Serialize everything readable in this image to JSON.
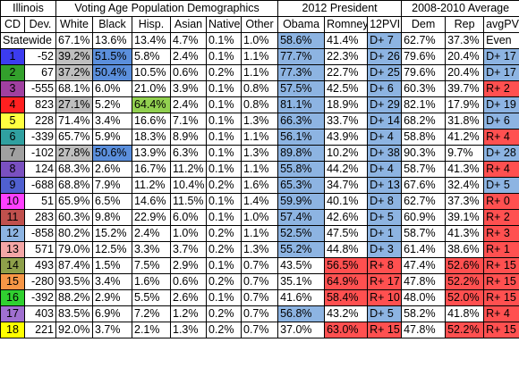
{
  "table": {
    "header": {
      "groups": [
        "Illinois",
        "Voting Age Population Demographics",
        "2012 President",
        "2008-2010 Average"
      ],
      "columns": [
        "CD",
        "Dev.",
        "White",
        "Black",
        "Hisp.",
        "Asian",
        "Native",
        "Other",
        "Obama",
        "Romney",
        "12PVI",
        "Dem",
        "Rep",
        "avgPVI"
      ]
    },
    "rows": [
      {
        "cells": [
          "Statewide",
          "67.1%",
          "13.6%",
          "13.4%",
          "4.7%",
          "0.1%",
          "1.0%",
          "58.6%",
          "41.4%",
          "D+ 7",
          "62.7%",
          "37.3%",
          "Even"
        ]
      },
      {
        "cd_color": "#3c3cf0",
        "cells": [
          "1",
          "-52",
          "39.2%",
          "51.5%",
          "5.8%",
          "2.4%",
          "0.1%",
          "1.1%",
          "77.7%",
          "22.3%",
          "D+ 26",
          "79.6%",
          "20.4%",
          "D+ 17"
        ]
      },
      {
        "cd_color": "#33a02c",
        "cells": [
          "2",
          "67",
          "37.2%",
          "50.4%",
          "10.5%",
          "0.6%",
          "0.2%",
          "1.1%",
          "77.3%",
          "22.7%",
          "D+ 25",
          "79.6%",
          "20.4%",
          "D+ 17"
        ]
      },
      {
        "cd_color": "#a040a0",
        "cells": [
          "3",
          "-555",
          "68.1%",
          "6.0%",
          "21.0%",
          "3.9%",
          "0.1%",
          "0.8%",
          "57.5%",
          "42.5%",
          "D+ 6",
          "60.3%",
          "39.7%",
          "R+ 2"
        ]
      },
      {
        "cd_color": "#ff2020",
        "cells": [
          "4",
          "823",
          "27.1%",
          "5.2%",
          "64.4%",
          "2.4%",
          "0.1%",
          "0.8%",
          "81.1%",
          "18.9%",
          "D+ 29",
          "82.1%",
          "17.9%",
          "D+ 19"
        ]
      },
      {
        "cd_color": "#ffff40",
        "cells": [
          "5",
          "228",
          "71.4%",
          "3.4%",
          "16.6%",
          "7.1%",
          "0.1%",
          "1.3%",
          "66.3%",
          "33.7%",
          "D+ 14",
          "68.2%",
          "31.8%",
          "D+ 6"
        ]
      },
      {
        "cd_color": "#30a0a0",
        "cells": [
          "6",
          "-339",
          "65.7%",
          "5.9%",
          "18.3%",
          "8.9%",
          "0.1%",
          "1.1%",
          "56.1%",
          "43.9%",
          "D+ 4",
          "58.8%",
          "41.2%",
          "R+ 4"
        ]
      },
      {
        "cd_color": "#a0a0a0",
        "cells": [
          "7",
          "-102",
          "27.8%",
          "50.6%",
          "13.9%",
          "6.3%",
          "0.1%",
          "1.3%",
          "89.8%",
          "10.2%",
          "D+ 38",
          "90.3%",
          "9.7%",
          "D+ 28"
        ]
      },
      {
        "cd_color": "#7a50c0",
        "cells": [
          "8",
          "124",
          "68.3%",
          "2.6%",
          "16.7%",
          "11.2%",
          "0.1%",
          "1.1%",
          "55.8%",
          "44.2%",
          "D+ 4",
          "58.7%",
          "41.3%",
          "R+ 4"
        ]
      },
      {
        "cd_color": "#5060d0",
        "cells": [
          "9",
          "-688",
          "68.8%",
          "7.9%",
          "11.2%",
          "10.4%",
          "0.2%",
          "1.6%",
          "65.3%",
          "34.7%",
          "D+ 13",
          "67.6%",
          "32.4%",
          "D+ 5"
        ]
      },
      {
        "cd_color": "#ff40ff",
        "cells": [
          "10",
          "51",
          "65.9%",
          "6.5%",
          "14.6%",
          "11.5%",
          "0.1%",
          "1.4%",
          "59.9%",
          "40.1%",
          "D+ 8",
          "62.7%",
          "37.3%",
          "R+ 0"
        ]
      },
      {
        "cd_color": "#c0504d",
        "cells": [
          "11",
          "283",
          "60.3%",
          "9.8%",
          "22.9%",
          "6.0%",
          "0.1%",
          "1.0%",
          "57.4%",
          "42.6%",
          "D+ 5",
          "60.9%",
          "39.1%",
          "R+ 2"
        ]
      },
      {
        "cd_color": "#8db4e2",
        "cells": [
          "12",
          "-858",
          "80.2%",
          "15.2%",
          "2.4%",
          "1.0%",
          "0.2%",
          "1.1%",
          "52.5%",
          "47.5%",
          "D+ 1",
          "58.7%",
          "41.3%",
          "R+ 3"
        ]
      },
      {
        "cd_color": "#f4a6a6",
        "cells": [
          "13",
          "571",
          "79.0%",
          "12.5%",
          "3.3%",
          "3.7%",
          "0.2%",
          "1.3%",
          "55.2%",
          "44.8%",
          "D+ 3",
          "61.4%",
          "38.6%",
          "R+ 1"
        ]
      },
      {
        "cd_color": "#8ea04a",
        "cells": [
          "14",
          "493",
          "87.4%",
          "1.5%",
          "7.5%",
          "2.9%",
          "0.1%",
          "0.7%",
          "43.5%",
          "56.5%",
          "R+ 8",
          "47.4%",
          "52.6%",
          "R+ 15"
        ]
      },
      {
        "cd_color": "#f79646",
        "cells": [
          "15",
          "-280",
          "93.5%",
          "3.4%",
          "1.6%",
          "0.6%",
          "0.2%",
          "0.7%",
          "35.1%",
          "64.9%",
          "R+ 17",
          "47.8%",
          "52.2%",
          "R+ 15"
        ]
      },
      {
        "cd_color": "#30d030",
        "cells": [
          "16",
          "-392",
          "88.2%",
          "2.9%",
          "5.5%",
          "2.6%",
          "0.1%",
          "0.7%",
          "41.6%",
          "58.4%",
          "R+ 10",
          "48.0%",
          "52.0%",
          "R+ 15"
        ]
      },
      {
        "cd_color": "#a070d0",
        "cells": [
          "17",
          "403",
          "83.5%",
          "6.9%",
          "7.2%",
          "1.2%",
          "0.2%",
          "0.7%",
          "56.8%",
          "43.2%",
          "D+ 5",
          "58.2%",
          "41.8%",
          "R+ 4"
        ]
      },
      {
        "cd_color": "#ffff00",
        "cells": [
          "18",
          "221",
          "92.0%",
          "3.7%",
          "2.1%",
          "1.3%",
          "0.2%",
          "0.7%",
          "37.0%",
          "63.0%",
          "R+ 15",
          "47.8%",
          "52.2%",
          "R+ 15"
        ]
      }
    ]
  }
}
